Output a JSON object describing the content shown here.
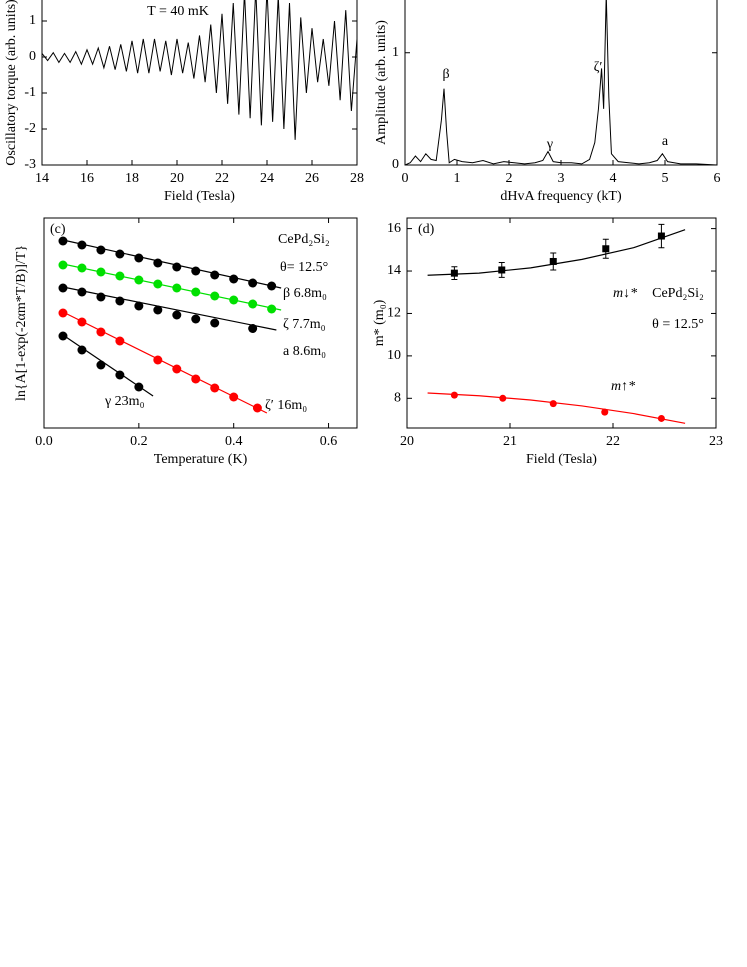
{
  "chart_data": [
    {
      "type": "line",
      "xlabel": "Field (Tesla)",
      "ylabel": "Oscillatory torque (arb. units)",
      "annotations": [
        "T = 40 mK"
      ],
      "xlim": [
        14,
        28
      ],
      "xticks": [
        14,
        16,
        18,
        20,
        22,
        24,
        26,
        28
      ],
      "ylim": [
        -3,
        2
      ],
      "yticks": [
        -3,
        -2,
        -1,
        0,
        1
      ],
      "series": [
        {
          "color": "#000000",
          "x": [
            14.0,
            14.25,
            14.5,
            14.75,
            15.0,
            15.25,
            15.5,
            15.75,
            16.0,
            16.25,
            16.5,
            16.75,
            17.0,
            17.25,
            17.5,
            17.75,
            18.0,
            18.25,
            18.5,
            18.75,
            19.0,
            19.25,
            19.5,
            19.75,
            20.0,
            20.25,
            20.5,
            20.75,
            21.0,
            21.25,
            21.5,
            21.75,
            22.0,
            22.25,
            22.5,
            22.75,
            23.0,
            23.25,
            23.5,
            23.75,
            24.0,
            24.25,
            24.5,
            24.75,
            25.0,
            25.25,
            25.5,
            25.75,
            26.0,
            26.25,
            26.5,
            26.75,
            27.0,
            27.25,
            27.5,
            27.75,
            28.0
          ],
          "values": [
            0.1,
            -0.1,
            0.12,
            -0.15,
            0.1,
            -0.15,
            0.15,
            -0.2,
            0.2,
            -0.2,
            0.25,
            -0.3,
            0.3,
            -0.35,
            0.35,
            -0.4,
            0.45,
            -0.45,
            0.5,
            -0.45,
            0.5,
            -0.4,
            0.45,
            -0.5,
            0.5,
            -0.45,
            0.4,
            -0.6,
            0.6,
            -0.7,
            0.9,
            -1.0,
            1.2,
            -1.3,
            1.5,
            -1.6,
            1.8,
            -1.7,
            1.9,
            -1.9,
            1.9,
            -1.8,
            1.7,
            -2.0,
            1.5,
            -2.3,
            1.1,
            -1.0,
            0.8,
            -0.7,
            0.5,
            -0.8,
            1.0,
            -1.2,
            1.3,
            -1.5,
            0.5
          ]
        }
      ]
    },
    {
      "type": "line",
      "xlabel": "dHvA frequency (kT)",
      "ylabel": "Amplitude (arb. units)",
      "annotations": [
        "β",
        "γ",
        "ζ′",
        "a"
      ],
      "xlim": [
        0,
        6
      ],
      "xticks": [
        0,
        1,
        2,
        3,
        4,
        5,
        6
      ],
      "ylim": [
        0,
        1.55
      ],
      "yticks": [
        0,
        1
      ],
      "series": [
        {
          "color": "#000000",
          "x": [
            0,
            0.1,
            0.2,
            0.3,
            0.4,
            0.5,
            0.6,
            0.7,
            0.75,
            0.8,
            0.85,
            0.95,
            1.1,
            1.3,
            1.5,
            1.7,
            1.9,
            2.1,
            2.3,
            2.5,
            2.65,
            2.75,
            2.85,
            3.0,
            3.2,
            3.4,
            3.55,
            3.65,
            3.72,
            3.78,
            3.82,
            3.87,
            3.92,
            3.97,
            4.1,
            4.3,
            4.5,
            4.7,
            4.85,
            4.95,
            5.05,
            5.3,
            5.6,
            6.0
          ],
          "values": [
            0,
            0.02,
            0.08,
            0.03,
            0.1,
            0.05,
            0.04,
            0.4,
            0.68,
            0.3,
            0.02,
            0.05,
            0.03,
            0.02,
            0.04,
            0.01,
            0.03,
            0.02,
            0.01,
            0.02,
            0.04,
            0.12,
            0.03,
            0.02,
            0.02,
            0.01,
            0.05,
            0.2,
            0.5,
            0.86,
            0.5,
            1.52,
            0.6,
            0.1,
            0.03,
            0.02,
            0.01,
            0.02,
            0.04,
            0.1,
            0.03,
            0.01,
            0.01,
            0
          ]
        }
      ]
    },
    {
      "type": "scatter",
      "xlabel": "Temperature (K)",
      "ylabel": "ln{A[1-exp(-2αm*T/B)]/T}",
      "annotations": [
        "(c)",
        "CePd₂Si₂",
        "θ= 12.5°"
      ],
      "xlim": [
        0,
        0.66
      ],
      "xticks": [
        {
          "value": 0,
          "label": "0.0"
        },
        0.2,
        0.4,
        0.6
      ],
      "ylim": [
        0,
        21
      ],
      "series": [
        {
          "name": "β 6.8m₀",
          "color": "#000000",
          "marker": "circle",
          "x": [
            0.04,
            0.08,
            0.12,
            0.16,
            0.2,
            0.24,
            0.28,
            0.32,
            0.36,
            0.4,
            0.44,
            0.48
          ],
          "values": [
            18.7,
            18.3,
            17.8,
            17.4,
            17.0,
            16.5,
            16.1,
            15.7,
            15.3,
            14.9,
            14.5,
            14.2
          ],
          "fit_x": [
            0.04,
            0.5
          ],
          "fit_values": [
            18.8,
            14.0
          ]
        },
        {
          "name": "ζ 7.7m₀",
          "color": "#00e000",
          "marker": "circle",
          "x": [
            0.04,
            0.08,
            0.12,
            0.16,
            0.2,
            0.24,
            0.28,
            0.32,
            0.36,
            0.4,
            0.44,
            0.48
          ],
          "values": [
            16.3,
            16.0,
            15.6,
            15.2,
            14.8,
            14.4,
            14.0,
            13.6,
            13.2,
            12.8,
            12.4,
            11.9
          ],
          "fit_x": [
            0.04,
            0.5
          ],
          "fit_values": [
            16.4,
            11.8
          ]
        },
        {
          "name": "a 8.6m₀",
          "color": "#000000",
          "marker": "circle",
          "x": [
            0.04,
            0.08,
            0.12,
            0.16,
            0.2,
            0.24,
            0.28,
            0.32,
            0.36,
            0.44
          ],
          "values": [
            14.0,
            13.6,
            13.1,
            12.7,
            12.2,
            11.8,
            11.3,
            10.9,
            10.5,
            9.95
          ],
          "fit_x": [
            0.04,
            0.49
          ],
          "fit_values": [
            14.1,
            9.8
          ]
        },
        {
          "name": "ζ′ 16m₀",
          "color": "#ff0000",
          "marker": "circle",
          "x": [
            0.04,
            0.08,
            0.12,
            0.16,
            0.24,
            0.28,
            0.32,
            0.36,
            0.4,
            0.45
          ],
          "values": [
            11.5,
            10.6,
            9.6,
            8.7,
            6.8,
            5.9,
            4.9,
            4.0,
            3.1,
            2.0
          ],
          "fit_x": [
            0.04,
            0.47
          ],
          "fit_values": [
            11.6,
            1.5
          ]
        },
        {
          "name": "γ  23m₀",
          "color": "#000000",
          "marker": "circle",
          "x": [
            0.04,
            0.08,
            0.12,
            0.16,
            0.2
          ],
          "values": [
            9.2,
            7.8,
            6.3,
            5.3,
            4.1
          ],
          "fit_x": [
            0.04,
            0.23
          ],
          "fit_values": [
            9.3,
            3.2
          ]
        }
      ]
    },
    {
      "type": "scatter",
      "xlabel": "Field (Tesla)",
      "ylabel": "m* (m₀)",
      "annotations": [
        "(d)",
        "CePd₂Si₂",
        "θ = 12.5°"
      ],
      "xlim": [
        20,
        23
      ],
      "xticks": [
        20,
        21,
        22,
        23
      ],
      "ylim": [
        6.6,
        16.5
      ],
      "yticks": [
        8,
        10,
        12,
        14,
        16
      ],
      "series": [
        {
          "name": "m↓*",
          "color": "#000000",
          "marker": "square",
          "x": [
            20.46,
            20.92,
            21.42,
            21.93,
            22.47
          ],
          "values": [
            13.9,
            14.05,
            14.45,
            15.05,
            15.65
          ],
          "errors": [
            0.3,
            0.35,
            0.4,
            0.45,
            0.55
          ],
          "fit_x": [
            20.2,
            20.7,
            21.2,
            21.7,
            22.2,
            22.7
          ],
          "fit_values": [
            13.8,
            13.9,
            14.15,
            14.55,
            15.1,
            15.95
          ]
        },
        {
          "name": "m↑*",
          "color": "#ff0000",
          "marker": "circle",
          "x": [
            20.46,
            20.93,
            21.42,
            21.92,
            22.47
          ],
          "values": [
            8.15,
            8.0,
            7.75,
            7.35,
            7.05
          ],
          "fit_x": [
            20.2,
            20.7,
            21.2,
            21.7,
            22.2,
            22.7
          ],
          "fit_values": [
            8.25,
            8.12,
            7.92,
            7.64,
            7.28,
            6.82
          ]
        }
      ]
    }
  ]
}
